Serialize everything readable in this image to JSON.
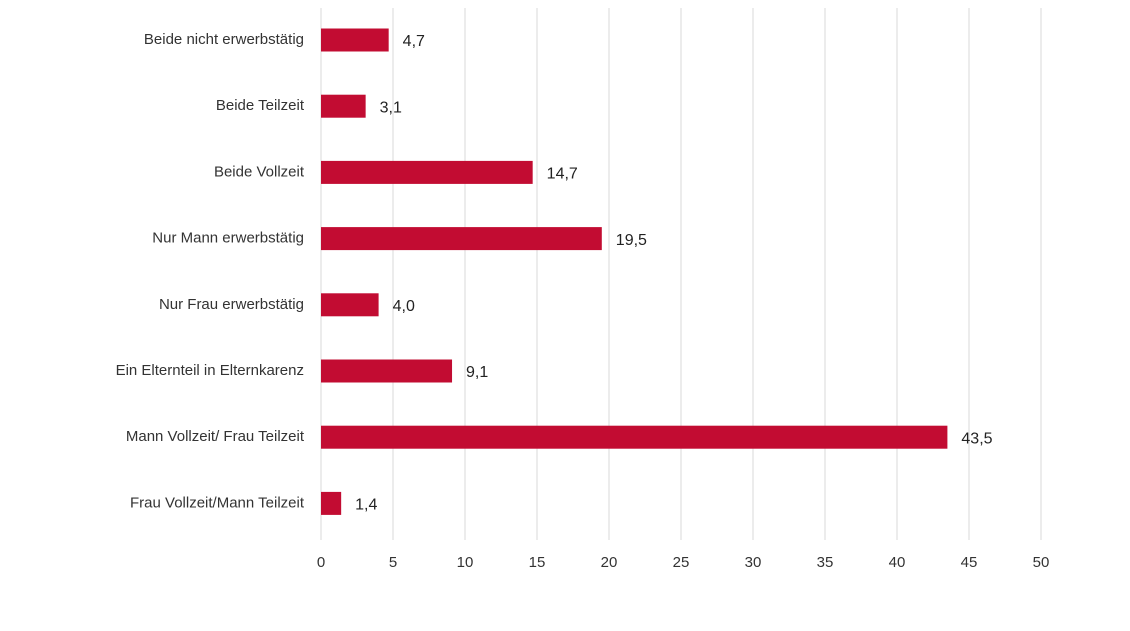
{
  "chart_data": {
    "type": "bar",
    "orientation": "horizontal",
    "title": "",
    "xlabel": "",
    "ylabel": "",
    "categories": [
      "Beide nicht erwerbstätig",
      "Beide Teilzeit",
      "Beide Vollzeit",
      "Nur Mann erwerbstätig",
      "Nur Frau erwerbstätig",
      "Ein Elternteil in Elternkarenz",
      "Mann Vollzeit/ Frau Teilzeit",
      "Frau Vollzeit/Mann Teilzeit"
    ],
    "values": [
      4.7,
      3.1,
      14.7,
      19.5,
      4.0,
      9.1,
      43.5,
      1.4
    ],
    "value_labels": [
      "4,7",
      "3,1",
      "14,7",
      "19,5",
      "4,0",
      "9,1",
      "43,5",
      "1,4"
    ],
    "xlim": [
      0,
      50
    ],
    "xticks": [
      "0",
      "5",
      "10",
      "15",
      "20",
      "25",
      "30",
      "35",
      "40",
      "45",
      "50"
    ],
    "grid": "vertical",
    "legend": "none",
    "bar_color": "#c20c32",
    "grid_color": "#d9d9d9"
  }
}
